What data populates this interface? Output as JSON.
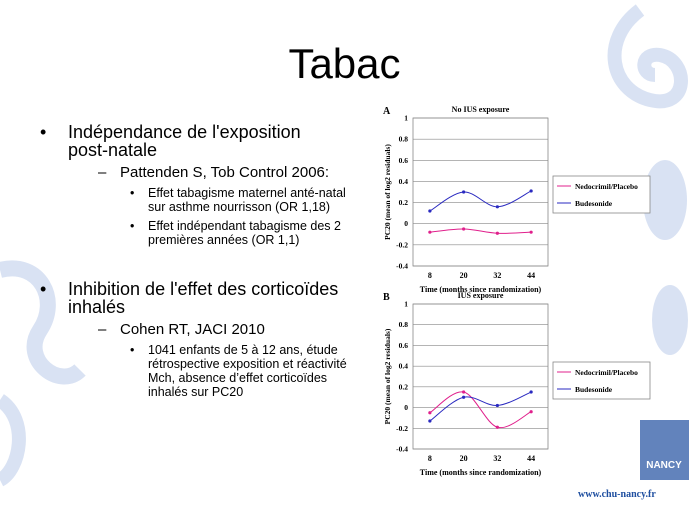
{
  "title": "Tabac",
  "bullets": [
    {
      "text": "Indépendance de l'exposition post-natale",
      "children": [
        {
          "text": "Pattenden S, Tob Control 2006:",
          "children": [
            {
              "text": "Effet tabagisme maternel anté-natal sur asthme nourrisson (OR 1,18)"
            },
            {
              "text": "Effet indépendant tabagisme des 2 premières années (OR 1,1)"
            }
          ]
        }
      ]
    },
    {
      "text": "Inhibition de l'effet des corticoïdes inhalés",
      "children": [
        {
          "text": "Cohen RT, JACI 2010",
          "children": [
            {
              "text": "1041 enfants de 5 à 12 ans, étude rétrospective exposition et réactivité Mch, absence d’effet corticoïdes inhalés sur PC20"
            }
          ]
        }
      ]
    }
  ],
  "logo": {
    "name": "NANCY",
    "url": "www.chu-nancy.fr"
  },
  "chart_data": [
    {
      "type": "line",
      "panel": "A",
      "title": "No IUS exposure",
      "x_label": "Time (months since randomization)",
      "y_label": "PC20 (mean of log2 residuals)",
      "categories": [
        "8",
        "20",
        "32",
        "44"
      ],
      "ylim": [
        -0.4,
        1
      ],
      "yticks": [
        -0.4,
        -0.2,
        0,
        0.2,
        0.4,
        0.6,
        0.8,
        1
      ],
      "grid": true,
      "series": [
        {
          "name": "Nedocrimil/Placebo",
          "color": "#e0208c",
          "values": [
            -0.08,
            -0.05,
            -0.09,
            -0.08
          ]
        },
        {
          "name": "Budesonide",
          "color": "#2a2ac0",
          "values": [
            0.12,
            0.3,
            0.16,
            0.31
          ]
        }
      ]
    },
    {
      "type": "line",
      "panel": "B",
      "title": "IUS exposure",
      "x_label": "Time (months since randomization)",
      "y_label": "PC20 (mean of log2 residuals)",
      "categories": [
        "8",
        "20",
        "32",
        "44"
      ],
      "ylim": [
        -0.4,
        1
      ],
      "yticks": [
        -0.4,
        -0.2,
        0,
        0.2,
        0.4,
        0.6,
        0.8,
        1
      ],
      "grid": true,
      "series": [
        {
          "name": "Nedocrimil/Placebo",
          "color": "#e0208c",
          "values": [
            -0.05,
            0.15,
            -0.19,
            -0.04
          ]
        },
        {
          "name": "Budesonide",
          "color": "#2a2ac0",
          "values": [
            -0.13,
            0.1,
            0.02,
            0.15
          ]
        }
      ]
    }
  ]
}
